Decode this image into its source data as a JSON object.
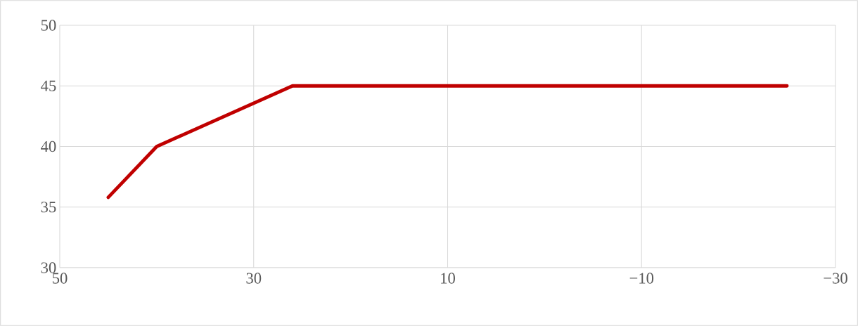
{
  "chart_data": {
    "type": "line",
    "x": [
      45,
      40,
      26,
      -25
    ],
    "series": [
      {
        "color": "#c00000",
        "values": [
          35.8,
          40,
          45,
          45
        ]
      }
    ],
    "xlim": [
      50,
      -30
    ],
    "xticks": [
      50,
      30,
      10,
      {
        "value": -10,
        "label": "−10"
      },
      {
        "value": -30,
        "label": "−30"
      }
    ],
    "ylim": [
      30,
      50
    ],
    "yticks": [
      30,
      35,
      40,
      45,
      50
    ],
    "grid": true,
    "marker": "none",
    "line_style": "solid"
  }
}
